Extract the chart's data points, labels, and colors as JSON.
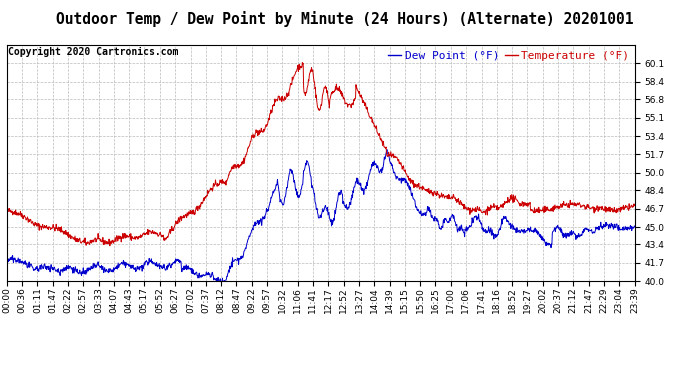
{
  "title": "Outdoor Temp / Dew Point by Minute (24 Hours) (Alternate) 20201001",
  "copyright": "Copyright 2020 Cartronics.com",
  "legend_dew": "Dew Point (°F)",
  "legend_temp": "Temperature (°F)",
  "temp_color": "#cc0000",
  "dew_color": "#0000cc",
  "background_color": "#ffffff",
  "grid_color": "#bbbbbb",
  "ylim": [
    40.0,
    61.8
  ],
  "yticks": [
    40.0,
    41.7,
    43.4,
    45.0,
    46.7,
    48.4,
    50.0,
    51.7,
    53.4,
    55.1,
    56.8,
    58.4,
    60.1
  ],
  "title_fontsize": 10.5,
  "copyright_fontsize": 7,
  "legend_fontsize": 8,
  "axis_label_fontsize": 6.5,
  "line_width": 0.7,
  "total_minutes": 1440,
  "xtick_labels": [
    "00:00",
    "00:36",
    "01:11",
    "01:47",
    "02:22",
    "02:57",
    "03:33",
    "04:07",
    "04:43",
    "05:17",
    "05:52",
    "06:27",
    "07:02",
    "07:37",
    "08:12",
    "08:47",
    "09:22",
    "09:57",
    "10:32",
    "11:06",
    "11:41",
    "12:17",
    "12:52",
    "13:27",
    "14:04",
    "14:39",
    "15:15",
    "15:50",
    "16:25",
    "17:00",
    "17:06",
    "17:41",
    "18:16",
    "18:52",
    "19:27",
    "20:02",
    "20:37",
    "21:12",
    "21:47",
    "22:29",
    "23:04",
    "23:39"
  ]
}
